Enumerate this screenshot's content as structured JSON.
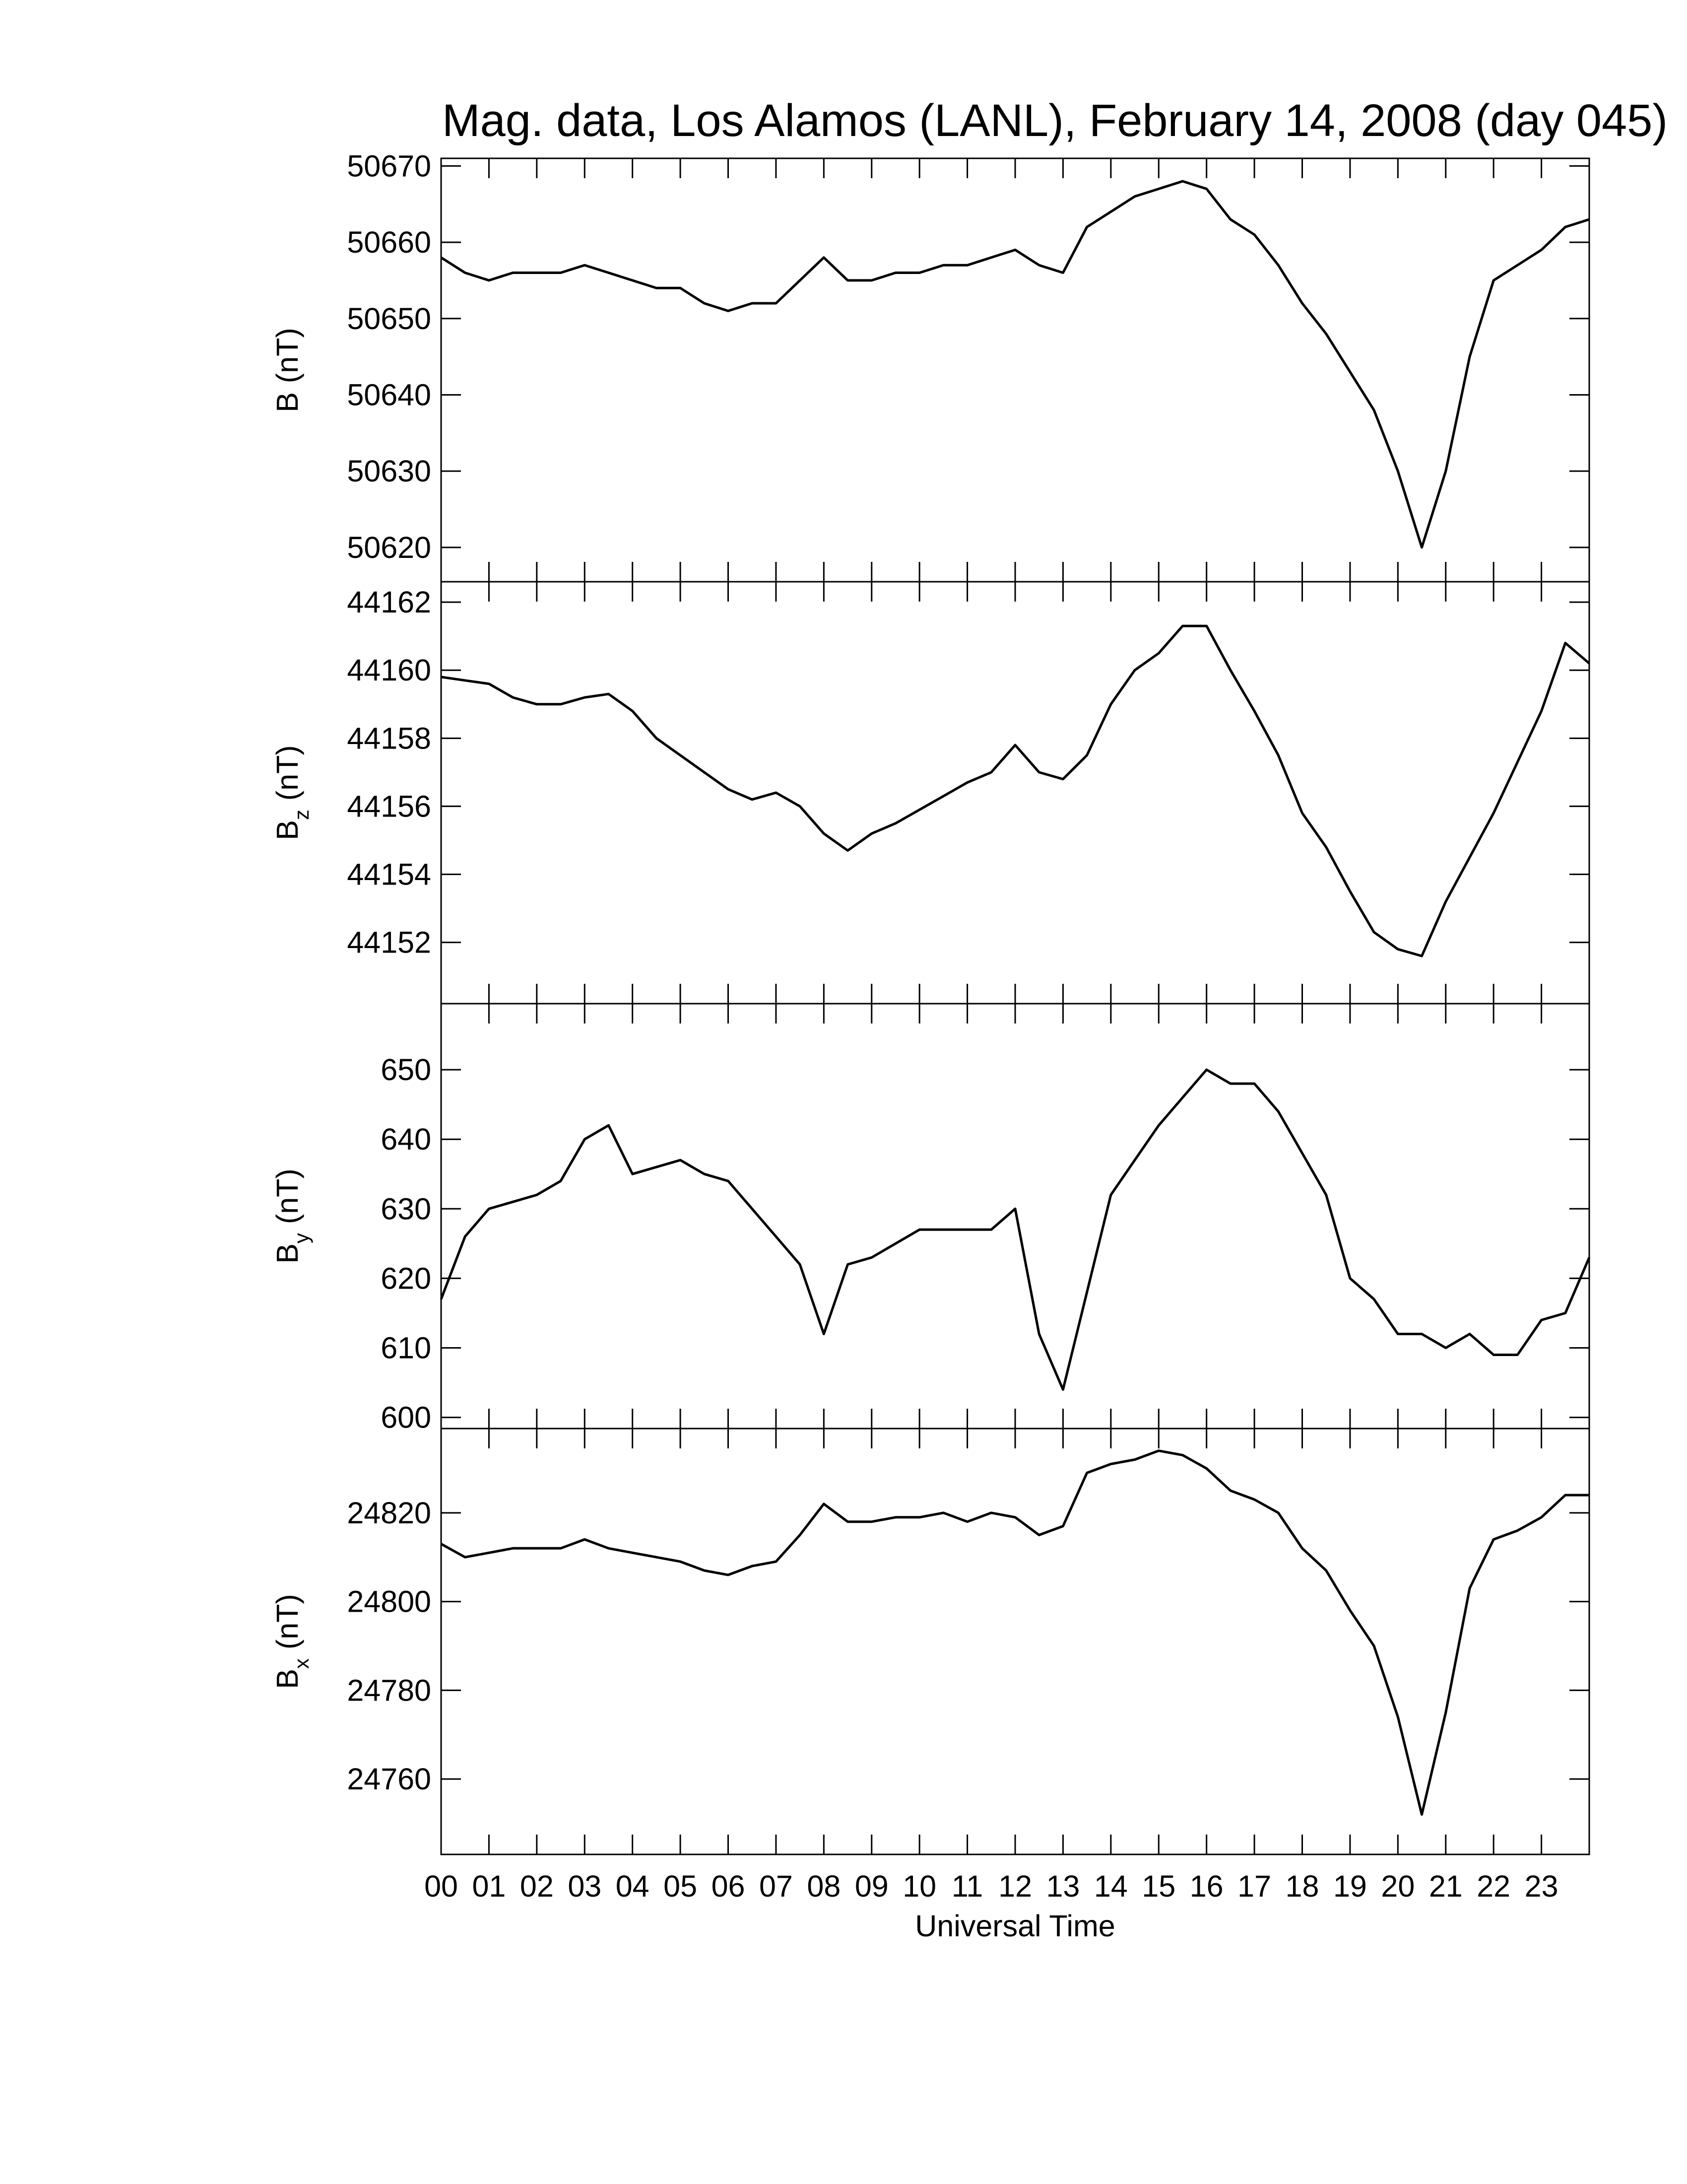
{
  "chart_data": [
    {
      "type": "line",
      "title": "Mag. data, Los Alamos (LANL), February 14, 2008 (day 045)",
      "ylabel": {
        "symbol": "B",
        "unit": "(nT)"
      },
      "xlim": [
        0,
        24
      ],
      "ylim": [
        50615.5,
        50671
      ],
      "yticks": [
        50620,
        50630,
        50640,
        50650,
        50660,
        50670
      ],
      "series": [
        {
          "color": "#000000",
          "x": [
            0,
            0.5,
            1,
            1.5,
            2,
            2.5,
            3,
            3.5,
            4,
            4.5,
            5,
            5.5,
            6,
            6.5,
            7,
            7.5,
            8,
            8.5,
            9,
            9.5,
            10,
            10.5,
            11,
            11.5,
            12,
            12.5,
            13,
            13.5,
            14,
            14.5,
            15,
            15.5,
            16,
            16.5,
            17,
            17.5,
            18,
            18.5,
            19,
            19.5,
            20,
            20.5,
            21,
            21.5,
            22,
            22.5,
            23,
            23.5,
            24
          ],
          "values": [
            50658,
            50656,
            50655,
            50656,
            50656,
            50656,
            50657,
            50656,
            50655,
            50654,
            50654,
            50652,
            50651,
            50652,
            50652,
            50655,
            50658,
            50655,
            50655,
            50656,
            50656,
            50657,
            50657,
            50658,
            50659,
            50657,
            50656,
            50662,
            50664,
            50666,
            50667,
            50668,
            50667,
            50663,
            50661,
            50657,
            50652,
            50648,
            50643,
            50638,
            50630,
            50620,
            50630,
            50645,
            50655,
            50657,
            50659,
            50662,
            50663
          ]
        }
      ]
    },
    {
      "type": "line",
      "ylabel": {
        "symbol": "B",
        "subscript": "z",
        "unit": "(nT)"
      },
      "xlim": [
        0,
        24
      ],
      "ylim": [
        44150.2,
        44162.6
      ],
      "yticks": [
        44152,
        44154,
        44156,
        44158,
        44160,
        44162
      ],
      "series": [
        {
          "color": "#000000",
          "x": [
            0,
            0.5,
            1,
            1.5,
            2,
            2.5,
            3,
            3.5,
            4,
            4.5,
            5,
            5.5,
            6,
            6.5,
            7,
            7.5,
            8,
            8.5,
            9,
            9.5,
            10,
            10.5,
            11,
            11.5,
            12,
            12.5,
            13,
            13.5,
            14,
            14.5,
            15,
            15.5,
            16,
            16.5,
            17,
            17.5,
            18,
            18.5,
            19,
            19.5,
            20,
            20.5,
            21,
            21.5,
            22,
            22.5,
            23,
            23.5,
            24
          ],
          "values": [
            44159.8,
            44159.7,
            44159.6,
            44159.2,
            44159.0,
            44159.0,
            44159.2,
            44159.3,
            44158.8,
            44158.0,
            44157.5,
            44157.0,
            44156.5,
            44156.2,
            44156.4,
            44156.0,
            44155.2,
            44154.7,
            44155.2,
            44155.5,
            44155.9,
            44156.3,
            44156.7,
            44157.0,
            44157.8,
            44157.0,
            44156.8,
            44157.5,
            44159.0,
            44160.0,
            44160.5,
            44161.3,
            44161.3,
            44160.0,
            44158.8,
            44157.5,
            44155.8,
            44154.8,
            44153.5,
            44152.3,
            44151.8,
            44151.6,
            44153.2,
            44154.5,
            44155.8,
            44157.3,
            44158.8,
            44160.8,
            44160.2
          ]
        }
      ]
    },
    {
      "type": "line",
      "ylabel": {
        "symbol": "B",
        "subscript": "y",
        "unit": "(nT)"
      },
      "xlim": [
        0,
        24
      ],
      "ylim": [
        598.4,
        659.5
      ],
      "yticks": [
        600,
        610,
        620,
        630,
        640,
        650
      ],
      "series": [
        {
          "color": "#000000",
          "x": [
            0,
            0.5,
            1,
            1.5,
            2,
            2.5,
            3,
            3.5,
            4,
            4.5,
            5,
            5.5,
            6,
            6.5,
            7,
            7.5,
            8,
            8.5,
            9,
            9.5,
            10,
            10.5,
            11,
            11.5,
            12,
            12.5,
            13,
            13.5,
            14,
            14.5,
            15,
            15.5,
            16,
            16.5,
            17,
            17.5,
            18,
            18.5,
            19,
            19.5,
            20,
            20.5,
            21,
            21.5,
            22,
            22.5,
            23,
            23.5,
            24
          ],
          "values": [
            617,
            626,
            630,
            631,
            632,
            634,
            640,
            642,
            635,
            636,
            637,
            635,
            634,
            630,
            626,
            622,
            612,
            622,
            623,
            625,
            627,
            627,
            627,
            627,
            630,
            612,
            604,
            618,
            632,
            637,
            642,
            646,
            650,
            648,
            648,
            644,
            638,
            632,
            620,
            617,
            612,
            612,
            610,
            612,
            609,
            609,
            614,
            615,
            623
          ]
        }
      ]
    },
    {
      "type": "line",
      "xlabel": "Universal Time",
      "ylabel": {
        "symbol": "B",
        "subscript": "x",
        "unit": "(nT)"
      },
      "xlim": [
        0,
        24
      ],
      "ylim": [
        24743,
        24839
      ],
      "yticks": [
        24760,
        24780,
        24800,
        24820
      ],
      "xticks": [
        {
          "value": 0,
          "label": "00"
        },
        {
          "value": 1,
          "label": "01"
        },
        {
          "value": 2,
          "label": "02"
        },
        {
          "value": 3,
          "label": "03"
        },
        {
          "value": 4,
          "label": "04"
        },
        {
          "value": 5,
          "label": "05"
        },
        {
          "value": 6,
          "label": "06"
        },
        {
          "value": 7,
          "label": "07"
        },
        {
          "value": 8,
          "label": "08"
        },
        {
          "value": 9,
          "label": "09"
        },
        {
          "value": 10,
          "label": "10"
        },
        {
          "value": 11,
          "label": "11"
        },
        {
          "value": 12,
          "label": "12"
        },
        {
          "value": 13,
          "label": "13"
        },
        {
          "value": 14,
          "label": "14"
        },
        {
          "value": 15,
          "label": "15"
        },
        {
          "value": 16,
          "label": "16"
        },
        {
          "value": 17,
          "label": "17"
        },
        {
          "value": 18,
          "label": "18"
        },
        {
          "value": 19,
          "label": "19"
        },
        {
          "value": 20,
          "label": "20"
        },
        {
          "value": 21,
          "label": "21"
        },
        {
          "value": 22,
          "label": "22"
        },
        {
          "value": 23,
          "label": "23"
        }
      ],
      "series": [
        {
          "color": "#000000",
          "x": [
            0,
            0.5,
            1,
            1.5,
            2,
            2.5,
            3,
            3.5,
            4,
            4.5,
            5,
            5.5,
            6,
            6.5,
            7,
            7.5,
            8,
            8.5,
            9,
            9.5,
            10,
            10.5,
            11,
            11.5,
            12,
            12.5,
            13,
            13.5,
            14,
            14.5,
            15,
            15.5,
            16,
            16.5,
            17,
            17.5,
            18,
            18.5,
            19,
            19.5,
            20,
            20.5,
            21,
            21.5,
            22,
            22.5,
            23,
            23.5,
            24
          ],
          "values": [
            24813,
            24810,
            24811,
            24812,
            24812,
            24812,
            24814,
            24812,
            24811,
            24810,
            24809,
            24807,
            24806,
            24808,
            24809,
            24815,
            24822,
            24818,
            24818,
            24819,
            24819,
            24820,
            24818,
            24820,
            24819,
            24815,
            24817,
            24829,
            24831,
            24832,
            24834,
            24833,
            24830,
            24825,
            24823,
            24820,
            24812,
            24807,
            24798,
            24790,
            24774,
            24752,
            24775,
            24803,
            24814,
            24816,
            24819,
            24824,
            24824
          ]
        }
      ]
    }
  ]
}
